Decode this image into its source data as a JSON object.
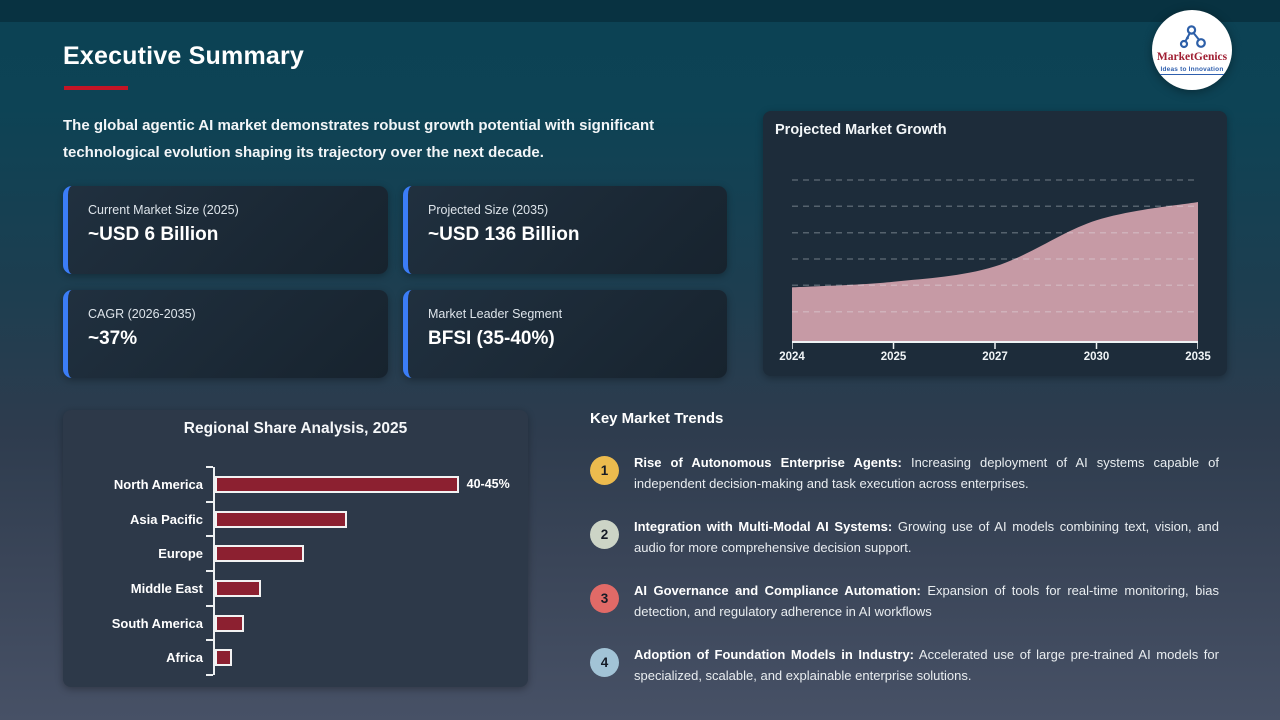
{
  "page": {
    "title": "Executive Summary",
    "intro": "The global agentic AI market demonstrates robust growth potential with significant technological evolution shaping its trajectory over the next decade."
  },
  "logo": {
    "name": "MarketGenics",
    "tagline": "Ideas to Innovation"
  },
  "colors": {
    "accent_red": "#c41425",
    "card_border_blue": "#3b7df7",
    "area_pink": "#c69aa5",
    "bar_maroon": "#8c2030",
    "panel_dark": "#1d2c3a",
    "panel_slate": "#2d3949"
  },
  "stat_cards": [
    {
      "label": "Current Market Size (2025)",
      "value": "~USD 6 Billion"
    },
    {
      "label": "Projected Size (2035)",
      "value": "~USD 136 Billion"
    },
    {
      "label": "CAGR (2026-2035)",
      "value": "~37%"
    },
    {
      "label": "Market Leader Segment",
      "value": "BFSI (35-40%)"
    }
  ],
  "chart_data": [
    {
      "type": "area",
      "title": "Projected Market Growth",
      "x": [
        "2024",
        "2025",
        "2027",
        "2030",
        "2035"
      ],
      "values_relative": [
        0.39,
        0.43,
        0.54,
        0.87,
        1.0
      ],
      "xlabel": "",
      "ylabel": "",
      "area_color": "#c69aa5",
      "grid": "horizontal-dashed",
      "legend": false
    },
    {
      "type": "bar",
      "orientation": "horizontal",
      "title": "Regional Share Analysis, 2025",
      "categories": [
        "North America",
        "Asia Pacific",
        "Europe",
        "Middle East",
        "South America",
        "Africa"
      ],
      "values_pct": [
        42.5,
        23,
        15.5,
        8,
        5,
        3
      ],
      "xlim": [
        0,
        52.5
      ],
      "data_labels": [
        "40-45%",
        "",
        "",
        "",
        "",
        ""
      ],
      "bar_color": "#8c2030",
      "grid": false,
      "legend": false
    }
  ],
  "trends": {
    "heading": "Key Market Trends",
    "items": [
      {
        "num": "1",
        "badge_color": "#ecbb4e",
        "title": "Rise of Autonomous Enterprise Agents:",
        "body": "Increasing deployment of AI systems capable of independent decision-making and task execution across enterprises."
      },
      {
        "num": "2",
        "badge_color": "#ccd4c6",
        "title": "Integration with Multi-Modal AI Systems:",
        "body": "Growing use of AI models combining text, vision, and audio for more comprehensive decision support."
      },
      {
        "num": "3",
        "badge_color": "#e16a67",
        "title": "AI Governance and Compliance Automation:",
        "body": "Expansion of tools for real-time monitoring, bias detection, and regulatory adherence in AI workflows"
      },
      {
        "num": "4",
        "badge_color": "#a2c3d6",
        "title": "Adoption of Foundation Models in Industry:",
        "body": "Accelerated use of large pre-trained AI models for specialized, scalable, and explainable enterprise solutions."
      }
    ]
  }
}
